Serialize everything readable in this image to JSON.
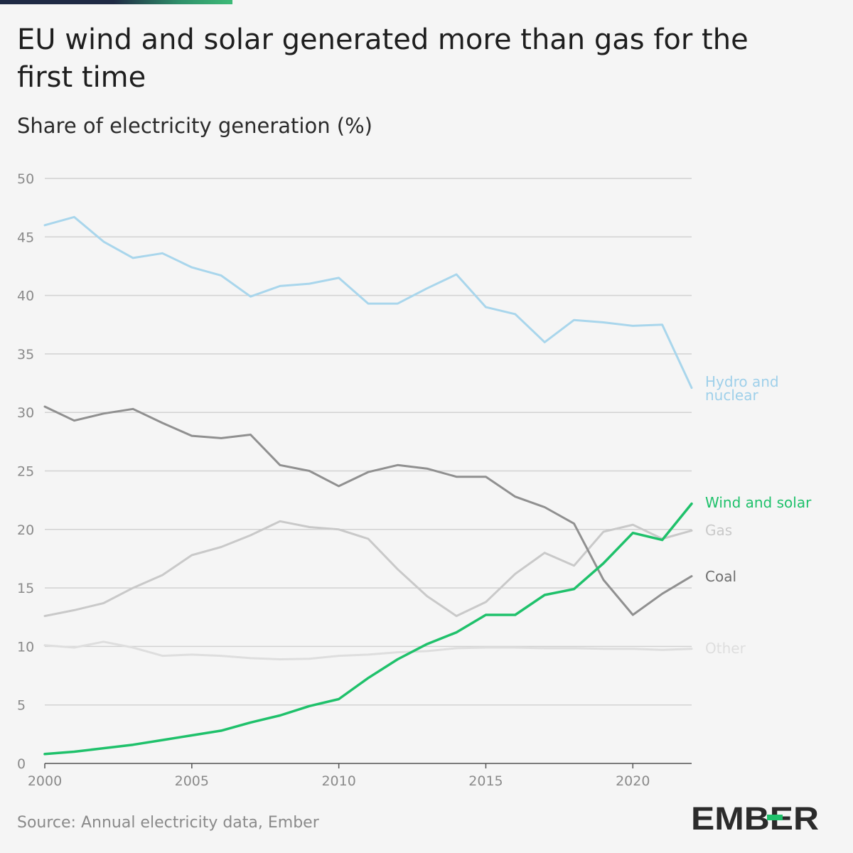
{
  "header": {
    "title": "EU wind and solar generated more than gas for the first time",
    "subtitle": "Share of electricity generation (%)"
  },
  "footer": {
    "source": "Source: Annual electricity data, Ember",
    "logo_text": "EMBER"
  },
  "colors": {
    "background": "#f5f5f5",
    "grid": "#d2d2d2",
    "axis": "#555555",
    "tick_label": "#8a8a8a",
    "brand_green": "#1fc16b"
  },
  "chart_data": {
    "type": "line",
    "x": [
      2000,
      2001,
      2002,
      2003,
      2004,
      2005,
      2006,
      2007,
      2008,
      2009,
      2010,
      2011,
      2012,
      2013,
      2014,
      2015,
      2016,
      2017,
      2018,
      2019,
      2020,
      2021,
      2022
    ],
    "xlim": [
      2000,
      2022
    ],
    "ylim": [
      0,
      50
    ],
    "xticks": [
      2000,
      2005,
      2010,
      2015,
      2020
    ],
    "yticks": [
      0,
      5,
      10,
      15,
      20,
      25,
      30,
      35,
      40,
      45,
      50
    ],
    "grid": true,
    "legend": "direct labels at line ends (right)",
    "series": [
      {
        "name": "Other",
        "color": "#dedede",
        "label_color": "#dedede",
        "values": [
          10.1,
          9.9,
          10.4,
          9.9,
          9.2,
          9.3,
          9.2,
          9.0,
          8.9,
          8.95,
          9.2,
          9.3,
          9.5,
          9.6,
          9.85,
          9.9,
          9.9,
          9.85,
          9.85,
          9.8,
          9.8,
          9.7,
          9.8
        ]
      },
      {
        "name": "Gas",
        "color": "#c9c9c9",
        "label_color": "#c9c9c9",
        "values": [
          12.6,
          13.1,
          13.7,
          15.0,
          16.1,
          17.8,
          18.5,
          19.5,
          20.7,
          20.2,
          20.0,
          19.2,
          16.6,
          14.3,
          12.6,
          13.8,
          16.2,
          18.0,
          16.9,
          19.8,
          20.4,
          19.2,
          19.9
        ]
      },
      {
        "name": "Coal",
        "color": "#909090",
        "label_color": "#6e6e6e",
        "values": [
          30.5,
          29.3,
          29.9,
          30.3,
          29.1,
          28.0,
          27.8,
          28.1,
          25.5,
          25.0,
          23.7,
          24.9,
          25.5,
          25.2,
          24.5,
          24.5,
          22.8,
          21.9,
          20.5,
          15.7,
          12.7,
          14.5,
          16.0
        ]
      },
      {
        "name": "Hydro and nuclear",
        "label_lines": [
          "Hydro and",
          "nuclear"
        ],
        "color": "#a9d6ec",
        "label_color": "#9fd0ea",
        "values": [
          46.0,
          46.7,
          44.6,
          43.2,
          43.6,
          42.4,
          41.7,
          39.9,
          40.8,
          41.0,
          41.5,
          39.3,
          39.3,
          40.6,
          41.8,
          39.0,
          38.4,
          36.0,
          37.9,
          37.7,
          37.4,
          37.5,
          32.1
        ]
      },
      {
        "name": "Wind and solar",
        "color": "#1fc16b",
        "label_color": "#1fc16b",
        "values": [
          0.8,
          1.0,
          1.3,
          1.6,
          2.0,
          2.4,
          2.8,
          3.5,
          4.1,
          4.9,
          5.5,
          7.3,
          8.9,
          10.2,
          11.2,
          12.7,
          12.7,
          14.4,
          14.9,
          17.1,
          19.7,
          19.1,
          22.2
        ]
      }
    ]
  }
}
